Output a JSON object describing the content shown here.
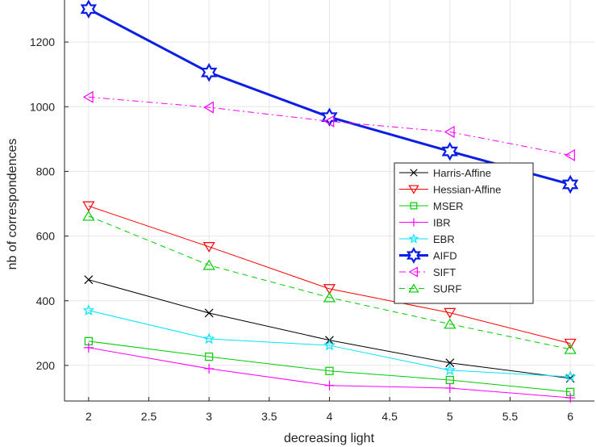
{
  "chart_data": {
    "type": "line",
    "title": "",
    "xlabel": "decreasing light",
    "ylabel": "nb of correspondences",
    "x": [
      2,
      3,
      4,
      5,
      6
    ],
    "xlim": [
      1.8,
      6.2
    ],
    "ylim": [
      90,
      1330
    ],
    "xticks": [
      2,
      2.5,
      3,
      3.5,
      4,
      4.5,
      5,
      5.5,
      6
    ],
    "xtick_labels": [
      "2",
      "2.5",
      "3",
      "3.5",
      "4",
      "4.5",
      "5",
      "5.5",
      "6"
    ],
    "yticks": [
      200,
      400,
      600,
      800,
      1000,
      1200
    ],
    "ytick_labels": [
      "200",
      "400",
      "600",
      "800",
      "1000",
      "1200"
    ],
    "grid": true,
    "legend_position": "center-right",
    "series": [
      {
        "name": "Harris-Affine",
        "values": [
          465,
          362,
          278,
          208,
          160
        ],
        "color": "#000000",
        "marker": "x",
        "dash": "solid",
        "width": 1
      },
      {
        "name": "Hessian-Affine",
        "values": [
          693,
          567,
          437,
          363,
          268
        ],
        "color": "#ff0000",
        "marker": "triangle-down",
        "dash": "solid",
        "width": 1
      },
      {
        "name": "MSER",
        "values": [
          275,
          227,
          183,
          155,
          118
        ],
        "color": "#00cc00",
        "marker": "square",
        "dash": "solid",
        "width": 1
      },
      {
        "name": "IBR",
        "values": [
          255,
          190,
          138,
          130,
          100
        ],
        "color": "#ff00ff",
        "marker": "plus",
        "dash": "solid",
        "width": 1
      },
      {
        "name": "EBR",
        "values": [
          370,
          282,
          262,
          185,
          165
        ],
        "color": "#00e5ff",
        "marker": "star",
        "dash": "solid",
        "width": 1
      },
      {
        "name": "AIFD",
        "values": [
          1302,
          1106,
          968,
          862,
          760
        ],
        "color": "#0a1ee6",
        "marker": "hexagram",
        "dash": "solid",
        "width": 3
      },
      {
        "name": "SIFT",
        "values": [
          1030,
          998,
          955,
          922,
          850
        ],
        "color": "#ff00ff",
        "marker": "triangle-left",
        "dash": "dashdot",
        "width": 1
      },
      {
        "name": "SURF",
        "values": [
          662,
          510,
          410,
          328,
          250
        ],
        "color": "#00cc00",
        "marker": "triangle-up",
        "dash": "dashed",
        "width": 1
      }
    ]
  }
}
